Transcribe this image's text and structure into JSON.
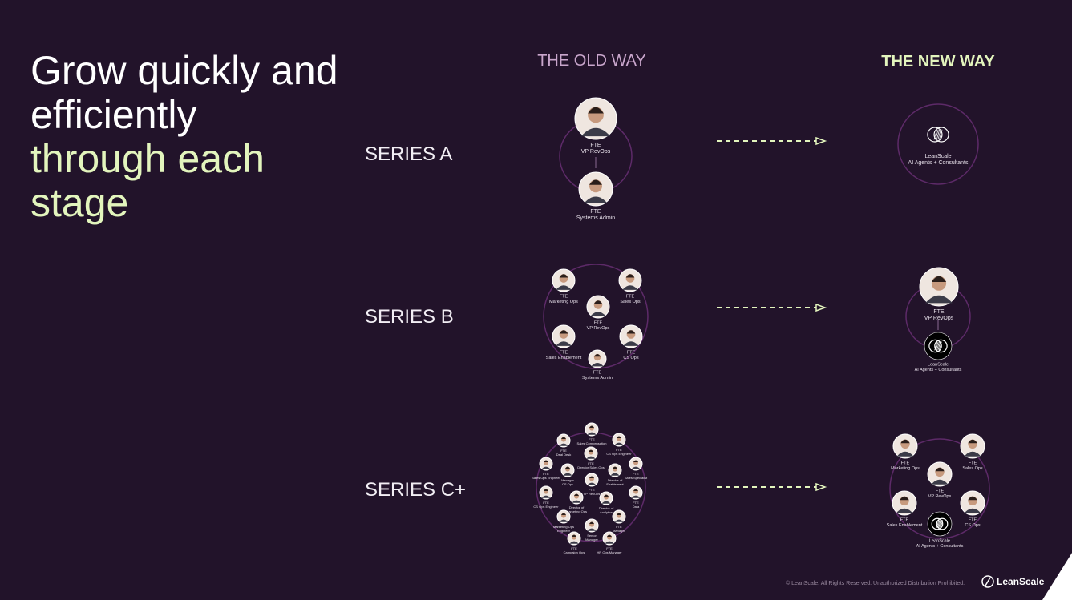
{
  "title": [
    "Grow quickly and",
    "efficiently"
  ],
  "title_highlight": [
    "through each",
    "stage"
  ],
  "columns": {
    "old": "THE OLD WAY",
    "new": "THE NEW WAY"
  },
  "rows": [
    {
      "label": "SERIES A",
      "old": {
        "nodes": [
          {
            "tag": "FTE",
            "role": "VP RevOps"
          },
          {
            "tag": "FTE",
            "role": "Systems Admin"
          }
        ]
      },
      "new": {
        "nodes": [
          {
            "tag": "LeanScale",
            "role": "AI Agents + Consultants"
          }
        ]
      }
    },
    {
      "label": "SERIES B",
      "old": {
        "nodes": [
          {
            "tag": "FTE",
            "role": "Marketing Ops"
          },
          {
            "tag": "FTE",
            "role": "Sales Ops"
          },
          {
            "tag": "FTE",
            "role": "VP RevOps"
          },
          {
            "tag": "FTE",
            "role": "Sales Enablement"
          },
          {
            "tag": "FTE",
            "role": "CS Ops"
          },
          {
            "tag": "FTE",
            "role": "Systems Admin"
          }
        ]
      },
      "new": {
        "nodes": [
          {
            "tag": "FTE",
            "role": "VP RevOps"
          },
          {
            "tag": "LeanScale",
            "role": "AI Agents + Consultants"
          }
        ]
      }
    },
    {
      "label": "SERIES C+",
      "old": {
        "nodes": [
          {
            "tag": "FTE",
            "role": "Sales Compensation"
          },
          {
            "tag": "FTE",
            "role": "Deal Desk"
          },
          {
            "tag": "FTE",
            "role": "CS Ops Engineer"
          },
          {
            "tag": "FTE",
            "role": "Director Sales Ops"
          },
          {
            "tag": "FTE",
            "role": "Sales Ops Engineer"
          },
          {
            "tag": "Manager",
            "role": "CS Ops"
          },
          {
            "tag": "Director of",
            "role": "Enablement"
          },
          {
            "tag": "FTE",
            "role": "Sales Specialist"
          },
          {
            "tag": "FTE",
            "role": "VP RevOps"
          },
          {
            "tag": "FTE",
            "role": "CS Ops Engineer"
          },
          {
            "tag": "Director of",
            "role": "Marketing Ops"
          },
          {
            "tag": "Director of",
            "role": "Analytics"
          },
          {
            "tag": "FTE",
            "role": "Data"
          },
          {
            "tag": "Marketing Ops",
            "role": "Engineer"
          },
          {
            "tag": "FTE",
            "role": "Manager"
          },
          {
            "tag": "Senior",
            "role": "Manager"
          },
          {
            "tag": "FTE",
            "role": "Campaign Ops"
          },
          {
            "tag": "FTE",
            "role": "HR Ops Manager"
          }
        ]
      },
      "new": {
        "nodes": [
          {
            "tag": "FTE",
            "role": "Marketing Ops"
          },
          {
            "tag": "FTE",
            "role": "Sales Ops"
          },
          {
            "tag": "FTE",
            "role": "VP RevOps"
          },
          {
            "tag": "FTE",
            "role": "Sales Enablement"
          },
          {
            "tag": "FTE",
            "role": "CS Ops"
          },
          {
            "tag": "LeanScale",
            "role": "AI Agents + Consultants"
          }
        ]
      }
    }
  ],
  "footer": {
    "copyright": "© LeanScale. All Rights Reserved. Unauthorized Distribution Prohibited.",
    "logo": "LeanScale"
  }
}
